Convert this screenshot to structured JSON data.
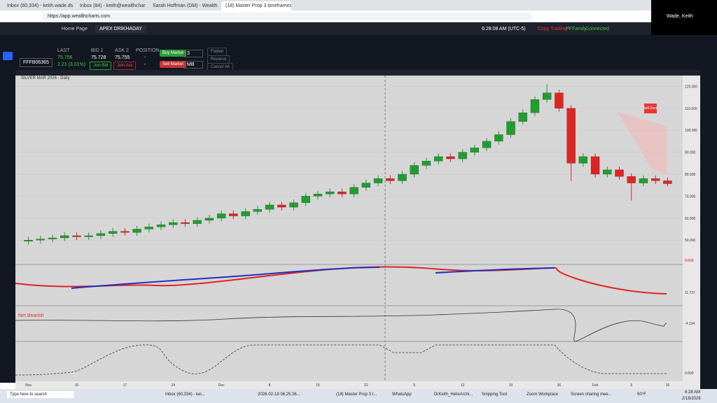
{
  "browser": {
    "tabs": [
      "Inbox (60,334) - keith.wade.dtad...",
      "Inbox (84) - keith@wealthcharts...",
      "Sarah Hoffman (DM) - Wealth...",
      "(18) Master Prop 3 timeframes -..."
    ],
    "url": "https://app.wealthcharts.com",
    "user": "Wade, Keith"
  },
  "app": {
    "tabs": [
      "Home Page",
      "APEX DRIKHADAY"
    ],
    "time": "6:28:08 AM (UTC-5)",
    "copy_trading": "Copy Trading",
    "account": "PFFamily",
    "status": "Connected"
  },
  "order": {
    "symbol": "FFFB06365",
    "last_label": "LAST",
    "last": "75.756",
    "change": "2.21 (3.01%)",
    "bid_label": "BID 1",
    "bid": "75.728",
    "ask_label": "ASK 2",
    "ask": "75.755",
    "position_label": "POSITION",
    "position": "-",
    "position2": "-",
    "join_bid": "Join Bid",
    "join_ask": "Join Ask",
    "buy": "Buy Market",
    "sell": "Sell Market",
    "qty": "3",
    "order_type": "MB",
    "flatten": "Flatten",
    "reverse": "Reverse",
    "cancel": "Cancel All"
  },
  "chart_data": {
    "type": "candlestick",
    "title": "SILVER MAR 2026 - Daily",
    "categories": [
      "Nov",
      null,
      null,
      null,
      "10",
      null,
      null,
      null,
      "17",
      null,
      null,
      null,
      "24",
      null,
      null,
      null,
      "Dec",
      null,
      null,
      null,
      "8",
      null,
      null,
      null,
      "15",
      null,
      null,
      null,
      "22",
      null,
      null,
      null,
      "5",
      null,
      null,
      null,
      "12",
      null,
      null,
      null,
      "20",
      null,
      null,
      null,
      "26",
      null,
      null,
      "Feb",
      null,
      null,
      "9",
      null,
      null,
      "16"
    ],
    "open": [
      49.5,
      50,
      50.5,
      51,
      52,
      51.5,
      52,
      53,
      54,
      53.5,
      55,
      56,
      57,
      58,
      57.5,
      59,
      60,
      62,
      61,
      63,
      64,
      66,
      65,
      67,
      70,
      71,
      72,
      71,
      74,
      76,
      78,
      77,
      80,
      84,
      86,
      88,
      87,
      90,
      92,
      95,
      98,
      104,
      108,
      114,
      117,
      110,
      85,
      88,
      80,
      82,
      79,
      76,
      78,
      77
    ],
    "high": [
      51.5,
      52,
      52.5,
      53.5,
      53.5,
      53.5,
      54.5,
      55.5,
      55.5,
      56.5,
      57.5,
      58.5,
      59.5,
      59.5,
      60.5,
      61.5,
      63.5,
      63.5,
      64.5,
      65.5,
      67.5,
      67.5,
      68.5,
      71.5,
      72.5,
      73.5,
      73.5,
      75.5,
      77.5,
      79.5,
      79.5,
      81.5,
      85.5,
      87.5,
      89.5,
      89.5,
      91.5,
      93.5,
      96.5,
      99.5,
      105.5,
      109.5,
      115.5,
      121,
      118.5,
      111.5,
      89.5,
      89.5,
      83.5,
      83.5,
      80.5,
      79.5,
      79.5,
      78.5
    ],
    "low": [
      48,
      48.5,
      49,
      49.5,
      50,
      50,
      50.5,
      51.5,
      52,
      52,
      53.5,
      54.5,
      55.5,
      56,
      56,
      57.5,
      58.5,
      59.5,
      59.5,
      61.5,
      62.5,
      63.5,
      63.5,
      65.5,
      68.5,
      69.5,
      69.5,
      69.5,
      72.5,
      74.5,
      75.5,
      75.5,
      78.5,
      82.5,
      84.5,
      85.5,
      85.5,
      88.5,
      90.5,
      93.5,
      96.5,
      102.5,
      106.5,
      112.5,
      108.5,
      77,
      83.5,
      78.5,
      78.5,
      77.5,
      68,
      74.5,
      75.5,
      74.5
    ],
    "close": [
      50,
      50.5,
      51,
      52,
      51.5,
      52,
      53,
      54,
      53.5,
      55,
      56,
      57,
      58,
      57.5,
      59,
      60,
      62,
      61,
      63,
      64,
      66,
      65,
      67,
      70,
      71,
      72,
      71,
      74,
      76,
      78,
      77,
      80,
      84,
      86,
      88,
      87,
      90,
      92,
      95,
      98,
      104,
      108,
      114,
      117,
      110,
      85,
      88,
      80,
      82,
      79,
      76,
      78,
      77,
      75.7
    ],
    "up_color": "#1f9e2f",
    "down_color": "#e02424",
    "ylim": [
      44,
      123
    ],
    "yticks": [
      {
        "value": 50,
        "label": "50.000"
      },
      {
        "value": 60,
        "label": "60.000"
      },
      {
        "value": 70,
        "label": "70.000"
      },
      {
        "value": 80,
        "label": "80.000"
      },
      {
        "value": 90,
        "label": "90.000"
      },
      {
        "value": 100,
        "label": "100.000"
      },
      {
        "value": 110,
        "label": "110.000"
      },
      {
        "value": 120,
        "label": "120.000"
      }
    ],
    "sell_zone": "Sell Zone"
  },
  "indicators": {
    "sentiment": "Net Bearish",
    "panel1_value": "0.000",
    "panel2_value": "11.727",
    "panel3_value": "-4.134",
    "panel4_value": "0.000"
  },
  "taskbar": {
    "search": "Type here to search",
    "items": [
      "Inbox (60,334) - kei...",
      "2026-02-18 06.25.36...",
      "(18) Master Prop 3 t...",
      "WhatsApp",
      "DrKeith_HelixArchi...",
      "Snipping Tool",
      "Zoom Workplace",
      "Screen sharing mee..."
    ],
    "weather": "50°F",
    "time": "6:28 AM",
    "date": "2/18/2026"
  }
}
